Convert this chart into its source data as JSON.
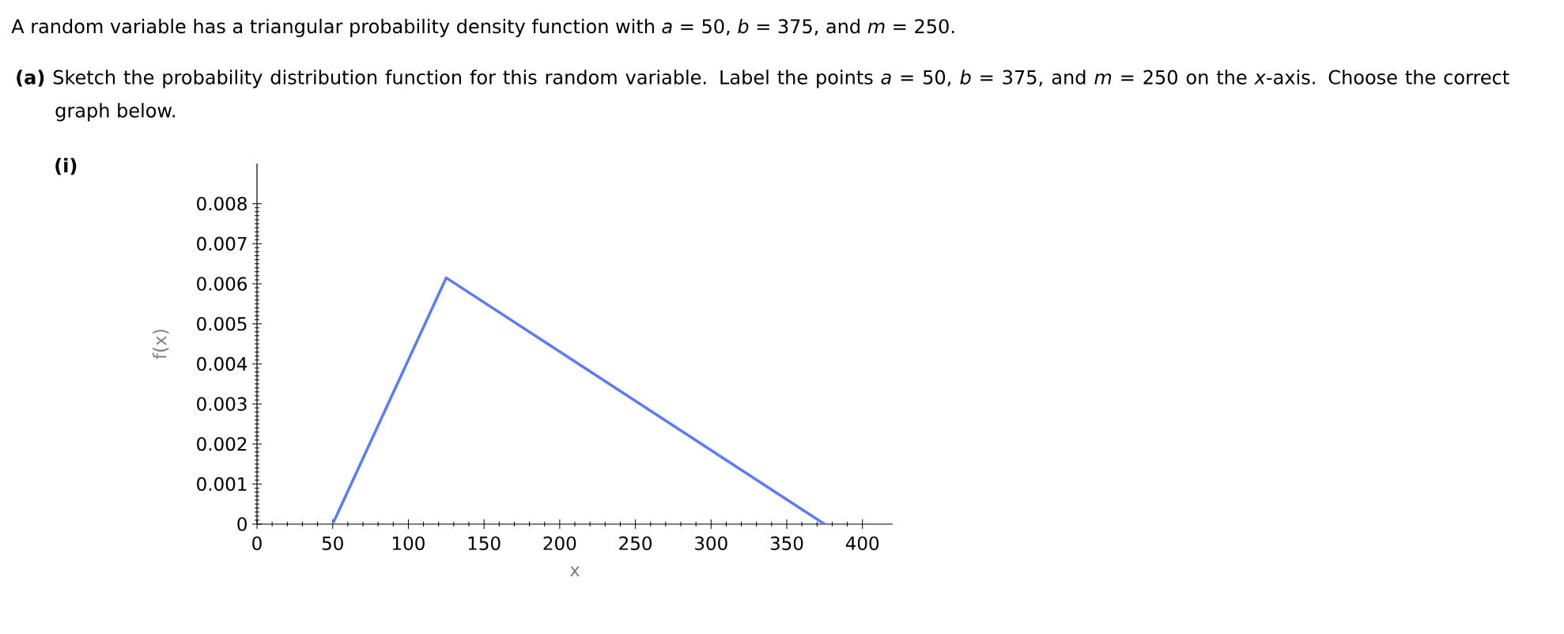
{
  "chart_data": {
    "type": "line",
    "title": "A random variable has a triangular probability density function with *a* = 50, *b* = 375, and *m* = 250.",
    "subtitle": "**(a)** Sketch the probability distribution function for this random variable. Label the points *a* = 50, *b* = 375, and *m* = 250 on the *x*-axis. Choose the correct graph below.",
    "annotations": [
      "**(i)**"
    ],
    "xlabel": "x",
    "ylabel": "f(x)",
    "series": [
      {
        "color": "#5b7cf2",
        "x": [
          50,
          125,
          375
        ],
        "values": [
          0,
          0.00615,
          0
        ]
      }
    ],
    "xlim": [
      0,
      420
    ],
    "ylim": [
      0,
      0.009
    ],
    "xticks": [
      0,
      50,
      100,
      150,
      200,
      250,
      300,
      350,
      400
    ],
    "yticks": [
      0,
      0.001,
      0.002,
      0.003,
      0.004,
      0.005,
      0.006,
      0.007,
      0.008
    ],
    "grid": false,
    "marker": "none",
    "line_style": "solid"
  }
}
